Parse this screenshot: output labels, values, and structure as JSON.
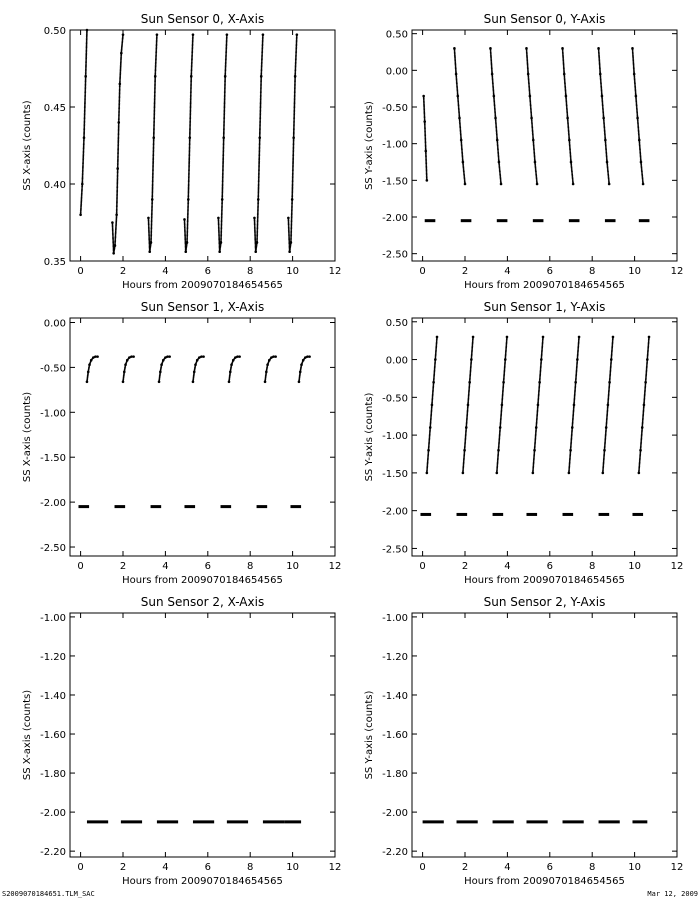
{
  "footer": {
    "left": "S2009070184651.TLM_SAC",
    "right": "Mar 12, 2009"
  },
  "chart_data": [
    {
      "type": "scatter",
      "title": "Sun Sensor 0, X-Axis",
      "xlabel": "Hours from 2009070184654565",
      "ylabel": "SS X-axis (counts)",
      "xlim": [
        -0.5,
        12
      ],
      "ylim": [
        0.35,
        0.5
      ],
      "xticks": [
        0,
        2,
        4,
        6,
        8,
        10,
        12
      ],
      "xtick_labels": [
        "0",
        "2",
        "4",
        "6",
        "8",
        "10",
        "12"
      ],
      "yticks": [
        0.35,
        0.4,
        0.45,
        0.5
      ],
      "ytick_labels": [
        "0.35",
        "0.40",
        "0.45",
        "0.50"
      ],
      "series": [
        {
          "x": [
            0.0,
            0.08,
            0.16,
            0.24,
            0.3
          ],
          "y": [
            0.38,
            0.4,
            0.43,
            0.47,
            0.5
          ]
        },
        {
          "x": [
            1.5,
            1.56,
            1.62,
            1.7,
            1.75,
            1.8,
            1.85,
            1.92,
            2.0
          ],
          "y": [
            0.375,
            0.355,
            0.36,
            0.38,
            0.41,
            0.44,
            0.465,
            0.485,
            0.497
          ]
        },
        {
          "x": [
            3.2,
            3.26,
            3.32,
            3.38,
            3.45,
            3.52,
            3.6
          ],
          "y": [
            0.378,
            0.356,
            0.362,
            0.39,
            0.43,
            0.47,
            0.497
          ]
        },
        {
          "x": [
            4.9,
            4.96,
            5.02,
            5.08,
            5.15,
            5.22,
            5.3
          ],
          "y": [
            0.377,
            0.356,
            0.362,
            0.39,
            0.43,
            0.47,
            0.497
          ]
        },
        {
          "x": [
            6.5,
            6.56,
            6.62,
            6.68,
            6.75,
            6.82,
            6.9
          ],
          "y": [
            0.378,
            0.356,
            0.362,
            0.39,
            0.43,
            0.47,
            0.497
          ]
        },
        {
          "x": [
            8.2,
            8.26,
            8.32,
            8.38,
            8.45,
            8.52,
            8.6
          ],
          "y": [
            0.378,
            0.356,
            0.362,
            0.39,
            0.43,
            0.47,
            0.497
          ]
        },
        {
          "x": [
            9.8,
            9.86,
            9.92,
            9.98,
            10.05,
            10.12,
            10.2
          ],
          "y": [
            0.378,
            0.356,
            0.362,
            0.39,
            0.43,
            0.47,
            0.497
          ]
        }
      ]
    },
    {
      "type": "scatter",
      "title": "Sun Sensor 0, Y-Axis",
      "xlabel": "Hours from 2009070184654565",
      "ylabel": "SS Y-axis (counts)",
      "xlim": [
        -0.5,
        12
      ],
      "ylim": [
        -2.6,
        0.55
      ],
      "xticks": [
        0,
        2,
        4,
        6,
        8,
        10,
        12
      ],
      "xtick_labels": [
        "0",
        "2",
        "4",
        "6",
        "8",
        "10",
        "12"
      ],
      "yticks": [
        -2.5,
        -2.0,
        -1.5,
        -1.0,
        -0.5,
        0.0,
        0.5
      ],
      "ytick_labels": [
        "-2.50",
        "-2.00",
        "-1.50",
        "-1.00",
        "-0.50",
        "0.00",
        "0.50"
      ],
      "series": [
        {
          "x": [
            0.05,
            0.1,
            0.15,
            0.2
          ],
          "y": [
            -0.35,
            -0.7,
            -1.1,
            -1.5
          ]
        },
        {
          "x": [
            1.5,
            1.58,
            1.66,
            1.74,
            1.82,
            1.9,
            2.0
          ],
          "y": [
            0.3,
            -0.05,
            -0.35,
            -0.65,
            -0.95,
            -1.25,
            -1.55
          ]
        },
        {
          "x": [
            3.2,
            3.28,
            3.36,
            3.44,
            3.52,
            3.6,
            3.7
          ],
          "y": [
            0.3,
            -0.05,
            -0.35,
            -0.65,
            -0.95,
            -1.25,
            -1.55
          ]
        },
        {
          "x": [
            4.9,
            4.98,
            5.06,
            5.14,
            5.22,
            5.3,
            5.4
          ],
          "y": [
            0.3,
            -0.05,
            -0.35,
            -0.65,
            -0.95,
            -1.25,
            -1.55
          ]
        },
        {
          "x": [
            6.6,
            6.68,
            6.76,
            6.84,
            6.92,
            7.0,
            7.1
          ],
          "y": [
            0.3,
            -0.05,
            -0.35,
            -0.65,
            -0.95,
            -1.25,
            -1.55
          ]
        },
        {
          "x": [
            8.3,
            8.38,
            8.46,
            8.54,
            8.62,
            8.7,
            8.8
          ],
          "y": [
            0.3,
            -0.05,
            -0.35,
            -0.65,
            -0.95,
            -1.25,
            -1.55
          ]
        },
        {
          "x": [
            9.9,
            9.98,
            10.06,
            10.14,
            10.22,
            10.3,
            10.4
          ],
          "y": [
            0.3,
            -0.05,
            -0.35,
            -0.65,
            -0.95,
            -1.25,
            -1.55
          ]
        }
      ],
      "segments": [
        {
          "x0": 0.1,
          "x1": 0.6,
          "y": -2.05
        },
        {
          "x0": 1.8,
          "x1": 2.3,
          "y": -2.05
        },
        {
          "x0": 3.5,
          "x1": 4.0,
          "y": -2.05
        },
        {
          "x0": 5.2,
          "x1": 5.7,
          "y": -2.05
        },
        {
          "x0": 6.9,
          "x1": 7.4,
          "y": -2.05
        },
        {
          "x0": 8.6,
          "x1": 9.1,
          "y": -2.05
        },
        {
          "x0": 10.2,
          "x1": 10.7,
          "y": -2.05
        }
      ]
    },
    {
      "type": "scatter",
      "title": "Sun Sensor 1, X-Axis",
      "xlabel": "Hours from 2009070184654565",
      "ylabel": "SS X-axis (counts)",
      "xlim": [
        -0.5,
        12
      ],
      "ylim": [
        -2.6,
        0.05
      ],
      "xticks": [
        0,
        2,
        4,
        6,
        8,
        10,
        12
      ],
      "xtick_labels": [
        "0",
        "2",
        "4",
        "6",
        "8",
        "10",
        "12"
      ],
      "yticks": [
        -2.5,
        -2.0,
        -1.5,
        -1.0,
        -0.5,
        0.0
      ],
      "ytick_labels": [
        "-2.50",
        "-2.00",
        "-1.50",
        "-1.00",
        "-0.50",
        "0.00"
      ],
      "series": [
        {
          "x": [
            0.3,
            0.36,
            0.42,
            0.5,
            0.6,
            0.7,
            0.8
          ],
          "y": [
            -0.66,
            -0.55,
            -0.47,
            -0.42,
            -0.39,
            -0.38,
            -0.38
          ]
        },
        {
          "x": [
            2.0,
            2.06,
            2.12,
            2.2,
            2.3,
            2.4,
            2.5
          ],
          "y": [
            -0.66,
            -0.55,
            -0.47,
            -0.42,
            -0.39,
            -0.38,
            -0.38
          ]
        },
        {
          "x": [
            3.7,
            3.76,
            3.82,
            3.9,
            4.0,
            4.1,
            4.2
          ],
          "y": [
            -0.66,
            -0.55,
            -0.47,
            -0.42,
            -0.39,
            -0.38,
            -0.38
          ]
        },
        {
          "x": [
            5.3,
            5.36,
            5.42,
            5.5,
            5.6,
            5.7,
            5.8
          ],
          "y": [
            -0.66,
            -0.55,
            -0.47,
            -0.42,
            -0.39,
            -0.38,
            -0.38
          ]
        },
        {
          "x": [
            7.0,
            7.06,
            7.12,
            7.2,
            7.3,
            7.4,
            7.5
          ],
          "y": [
            -0.66,
            -0.55,
            -0.47,
            -0.42,
            -0.39,
            -0.38,
            -0.38
          ]
        },
        {
          "x": [
            8.7,
            8.76,
            8.82,
            8.9,
            9.0,
            9.1,
            9.2
          ],
          "y": [
            -0.66,
            -0.55,
            -0.47,
            -0.42,
            -0.39,
            -0.38,
            -0.38
          ]
        },
        {
          "x": [
            10.3,
            10.36,
            10.42,
            10.5,
            10.6,
            10.7,
            10.8
          ],
          "y": [
            -0.66,
            -0.55,
            -0.47,
            -0.42,
            -0.39,
            -0.38,
            -0.38
          ]
        }
      ],
      "segments": [
        {
          "x0": -0.1,
          "x1": 0.4,
          "y": -2.05
        },
        {
          "x0": 1.6,
          "x1": 2.1,
          "y": -2.05
        },
        {
          "x0": 3.3,
          "x1": 3.8,
          "y": -2.05
        },
        {
          "x0": 4.9,
          "x1": 5.4,
          "y": -2.05
        },
        {
          "x0": 6.6,
          "x1": 7.1,
          "y": -2.05
        },
        {
          "x0": 8.3,
          "x1": 8.8,
          "y": -2.05
        },
        {
          "x0": 9.9,
          "x1": 10.4,
          "y": -2.05
        }
      ]
    },
    {
      "type": "scatter",
      "title": "Sun Sensor 1, Y-Axis",
      "xlabel": "Hours from 2009070184654565",
      "ylabel": "SS Y-axis (counts)",
      "xlim": [
        -0.5,
        12
      ],
      "ylim": [
        -2.6,
        0.55
      ],
      "xticks": [
        0,
        2,
        4,
        6,
        8,
        10,
        12
      ],
      "xtick_labels": [
        "0",
        "2",
        "4",
        "6",
        "8",
        "10",
        "12"
      ],
      "yticks": [
        -2.5,
        -2.0,
        -1.5,
        -1.0,
        -0.5,
        0.0,
        0.5
      ],
      "ytick_labels": [
        "-2.50",
        "-2.00",
        "-1.50",
        "-1.00",
        "-0.50",
        "0.00",
        "0.50"
      ],
      "series": [
        {
          "x": [
            0.2,
            0.28,
            0.36,
            0.44,
            0.52,
            0.6,
            0.68
          ],
          "y": [
            -1.5,
            -1.2,
            -0.9,
            -0.6,
            -0.3,
            0.0,
            0.3
          ]
        },
        {
          "x": [
            1.9,
            1.98,
            2.06,
            2.14,
            2.22,
            2.3,
            2.38
          ],
          "y": [
            -1.5,
            -1.2,
            -0.9,
            -0.6,
            -0.3,
            0.0,
            0.3
          ]
        },
        {
          "x": [
            3.5,
            3.58,
            3.66,
            3.74,
            3.82,
            3.9,
            3.98
          ],
          "y": [
            -1.5,
            -1.2,
            -0.9,
            -0.6,
            -0.3,
            0.0,
            0.3
          ]
        },
        {
          "x": [
            5.2,
            5.28,
            5.36,
            5.44,
            5.52,
            5.6,
            5.68
          ],
          "y": [
            -1.5,
            -1.2,
            -0.9,
            -0.6,
            -0.3,
            0.0,
            0.3
          ]
        },
        {
          "x": [
            6.9,
            6.98,
            7.06,
            7.14,
            7.22,
            7.3,
            7.38
          ],
          "y": [
            -1.5,
            -1.2,
            -0.9,
            -0.6,
            -0.3,
            0.0,
            0.3
          ]
        },
        {
          "x": [
            8.5,
            8.58,
            8.66,
            8.74,
            8.82,
            8.9,
            8.98
          ],
          "y": [
            -1.5,
            -1.2,
            -0.9,
            -0.6,
            -0.3,
            0.0,
            0.3
          ]
        },
        {
          "x": [
            10.2,
            10.28,
            10.36,
            10.44,
            10.52,
            10.6,
            10.68
          ],
          "y": [
            -1.5,
            -1.2,
            -0.9,
            -0.6,
            -0.3,
            0.0,
            0.3
          ]
        }
      ],
      "segments": [
        {
          "x0": -0.1,
          "x1": 0.4,
          "y": -2.05
        },
        {
          "x0": 1.6,
          "x1": 2.1,
          "y": -2.05
        },
        {
          "x0": 3.3,
          "x1": 3.8,
          "y": -2.05
        },
        {
          "x0": 4.9,
          "x1": 5.4,
          "y": -2.05
        },
        {
          "x0": 6.6,
          "x1": 7.1,
          "y": -2.05
        },
        {
          "x0": 8.3,
          "x1": 8.8,
          "y": -2.05
        },
        {
          "x0": 9.9,
          "x1": 10.4,
          "y": -2.05
        }
      ]
    },
    {
      "type": "scatter",
      "title": "Sun Sensor 2, X-Axis",
      "xlabel": "Hours from 2009070184654565",
      "ylabel": "SS X-axis (counts)",
      "xlim": [
        -0.5,
        12
      ],
      "ylim": [
        -2.23,
        -0.98
      ],
      "xticks": [
        0,
        2,
        4,
        6,
        8,
        10,
        12
      ],
      "xtick_labels": [
        "0",
        "2",
        "4",
        "6",
        "8",
        "10",
        "12"
      ],
      "yticks": [
        -2.2,
        -2.0,
        -1.8,
        -1.6,
        -1.4,
        -1.2,
        -1.0
      ],
      "ytick_labels": [
        "-2.20",
        "-2.00",
        "-1.80",
        "-1.60",
        "-1.40",
        "-1.20",
        "-1.00"
      ],
      "series": [],
      "segments": [
        {
          "x0": 0.3,
          "x1": 1.3,
          "y": -2.05
        },
        {
          "x0": 1.9,
          "x1": 2.9,
          "y": -2.05
        },
        {
          "x0": 3.6,
          "x1": 4.6,
          "y": -2.05
        },
        {
          "x0": 5.3,
          "x1": 6.3,
          "y": -2.05
        },
        {
          "x0": 6.9,
          "x1": 7.9,
          "y": -2.05
        },
        {
          "x0": 8.6,
          "x1": 9.6,
          "y": -2.05
        },
        {
          "x0": 9.6,
          "x1": 10.4,
          "y": -2.05
        }
      ]
    },
    {
      "type": "scatter",
      "title": "Sun Sensor 2, Y-Axis",
      "xlabel": "Hours from 2009070184654565",
      "ylabel": "SS Y-axis (counts)",
      "xlim": [
        -0.5,
        12
      ],
      "ylim": [
        -2.23,
        -0.98
      ],
      "xticks": [
        0,
        2,
        4,
        6,
        8,
        10,
        12
      ],
      "xtick_labels": [
        "0",
        "2",
        "4",
        "6",
        "8",
        "10",
        "12"
      ],
      "yticks": [
        -2.2,
        -2.0,
        -1.8,
        -1.6,
        -1.4,
        -1.2,
        -1.0
      ],
      "ytick_labels": [
        "-2.20",
        "-2.00",
        "-1.80",
        "-1.60",
        "-1.40",
        "-1.20",
        "-1.00"
      ],
      "series": [],
      "segments": [
        {
          "x0": 0.0,
          "x1": 1.0,
          "y": -2.05
        },
        {
          "x0": 1.6,
          "x1": 2.6,
          "y": -2.05
        },
        {
          "x0": 3.3,
          "x1": 4.3,
          "y": -2.05
        },
        {
          "x0": 4.9,
          "x1": 5.9,
          "y": -2.05
        },
        {
          "x0": 6.6,
          "x1": 7.6,
          "y": -2.05
        },
        {
          "x0": 8.3,
          "x1": 9.3,
          "y": -2.05
        },
        {
          "x0": 9.9,
          "x1": 10.6,
          "y": -2.05
        }
      ]
    }
  ]
}
